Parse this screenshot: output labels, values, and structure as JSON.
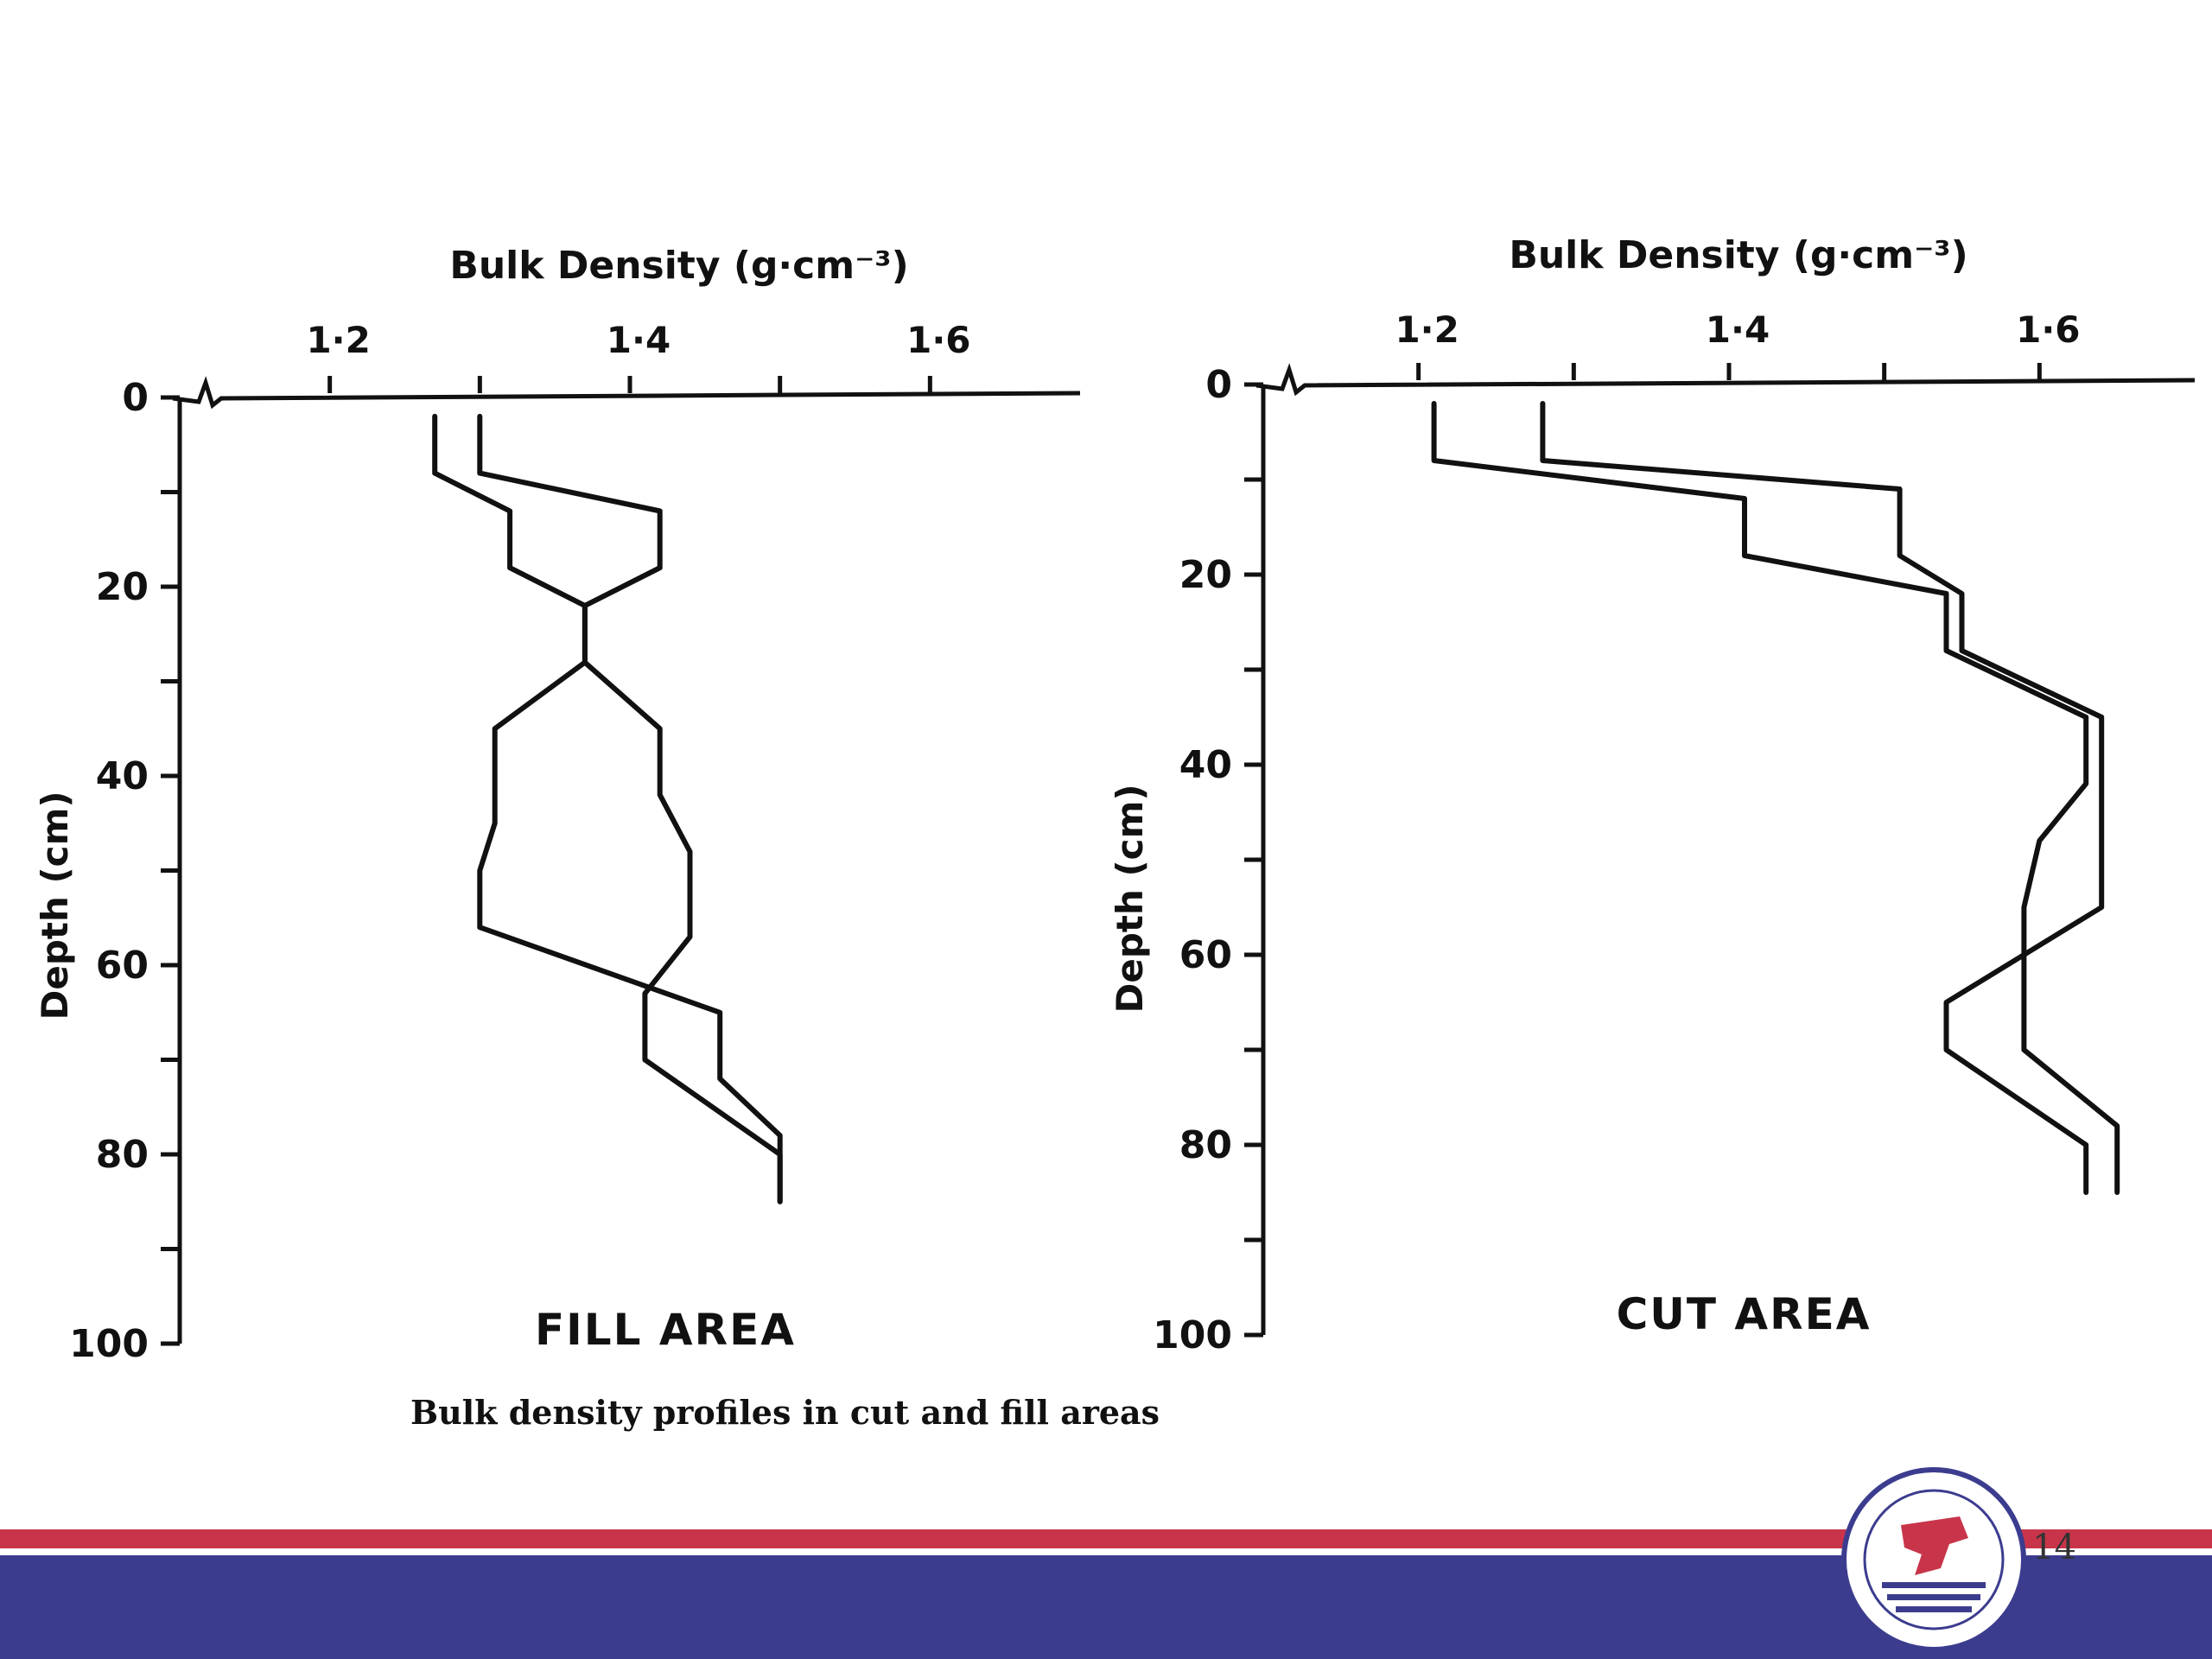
{
  "chart_data": [
    {
      "type": "line",
      "title": "",
      "xlabel": "Bulk Density (g·cm⁻³)",
      "ylabel": "Depth (cm)",
      "annotation": "FILL AREA",
      "xlim": [
        1.1,
        1.7
      ],
      "ylim": [
        0,
        100
      ],
      "x_ticks": [
        "1·2",
        "1·4",
        "1·6"
      ],
      "y_ticks": [
        "0",
        "20",
        "40",
        "60",
        "80",
        "100"
      ],
      "series": [
        {
          "x": [
            1.27,
            1.27,
            1.32,
            1.32,
            1.37,
            1.37,
            1.31,
            1.31,
            1.3,
            1.3,
            1.46,
            1.46,
            1.5,
            1.5,
            1.5
          ],
          "y": [
            2,
            8,
            12,
            18,
            22,
            28,
            35,
            45,
            50,
            56,
            65,
            72,
            78,
            80,
            85
          ]
        },
        {
          "x": [
            1.3,
            1.3,
            1.42,
            1.42,
            1.37,
            1.37,
            1.42,
            1.42,
            1.44,
            1.44,
            1.41,
            1.41,
            1.5,
            1.5
          ],
          "y": [
            2,
            8,
            12,
            18,
            22,
            28,
            35,
            42,
            48,
            57,
            63,
            70,
            80,
            85
          ]
        }
      ]
    },
    {
      "type": "line",
      "title": "",
      "xlabel": "Bulk Density (g·cm⁻³)",
      "ylabel": "Depth (cm)",
      "annotation": "CUT AREA",
      "xlim": [
        1.1,
        1.7
      ],
      "ylim": [
        0,
        100
      ],
      "x_ticks": [
        "1·2",
        "1·4",
        "1·6"
      ],
      "y_ticks": [
        "0",
        "20",
        "40",
        "60",
        "80",
        "100"
      ],
      "series": [
        {
          "x": [
            1.21,
            1.21,
            1.41,
            1.41,
            1.54,
            1.54,
            1.63,
            1.63,
            1.6,
            1.59,
            1.59,
            1.65,
            1.65
          ],
          "y": [
            2,
            8,
            12,
            18,
            22,
            28,
            35,
            42,
            48,
            55,
            70,
            78,
            85
          ]
        },
        {
          "x": [
            1.28,
            1.28,
            1.51,
            1.51,
            1.55,
            1.55,
            1.64,
            1.64,
            1.64,
            1.54,
            1.54,
            1.63,
            1.63
          ],
          "y": [
            2,
            8,
            11,
            18,
            22,
            28,
            35,
            40,
            55,
            65,
            70,
            80,
            85
          ]
        }
      ]
    }
  ],
  "caption": "Bulk density profiles in cut and fill areas",
  "page_number": "14",
  "colors": {
    "footer_red": "#c8354a",
    "footer_blue": "#3c3c8f",
    "line": "#111111"
  },
  "logo_icon": "university-logo-icon"
}
